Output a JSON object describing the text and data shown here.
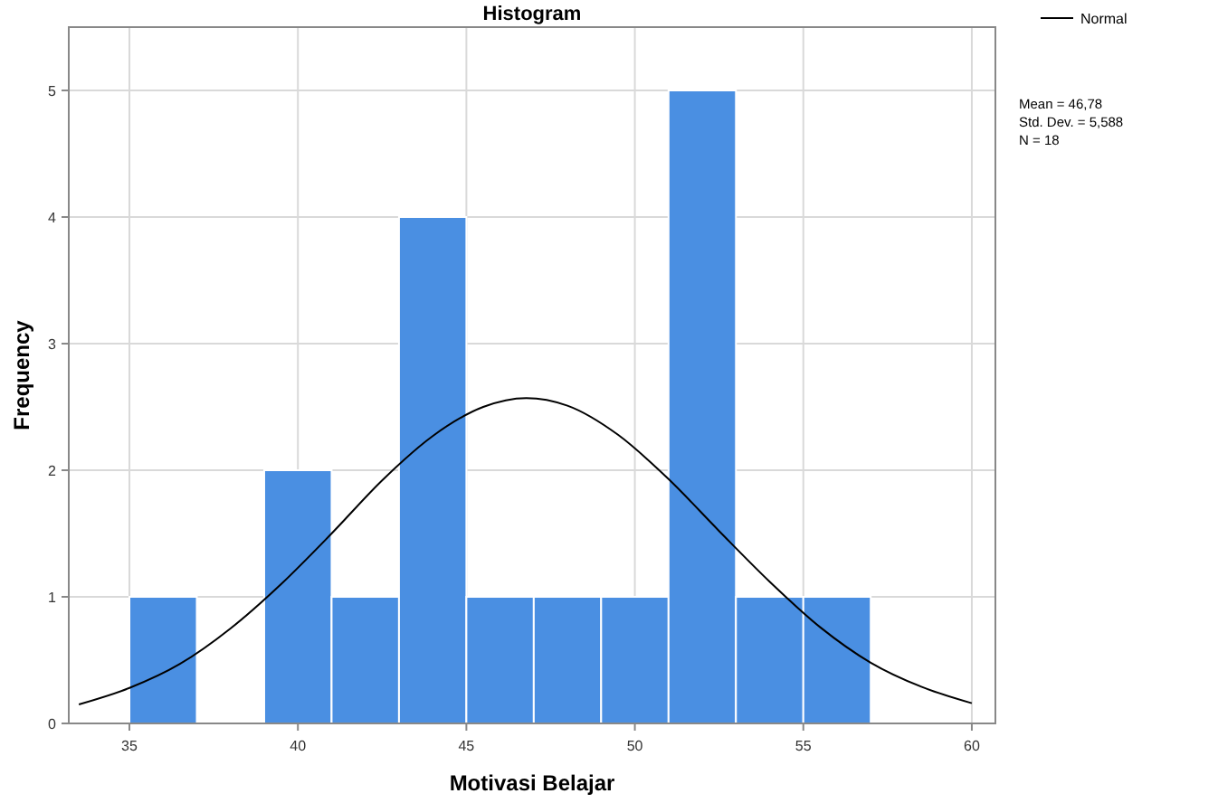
{
  "chart_data": {
    "type": "histogram",
    "title": "Histogram",
    "xlabel": "Motivasi Belajar",
    "ylabel": "Frequency",
    "bins": [
      35,
      37,
      39,
      41,
      43,
      45,
      47,
      49,
      51,
      53,
      55,
      57
    ],
    "series": [
      {
        "color": "#4a8fe2",
        "values": [
          1,
          0,
          2,
          1,
          4,
          1,
          1,
          1,
          5,
          1,
          1
        ]
      },
      {
        "type": "line",
        "name": "Normal",
        "color": "#000000",
        "x": [
          33.5,
          35,
          36.5,
          38,
          39.5,
          41,
          42.5,
          44,
          45.5,
          46.78,
          48,
          49.5,
          51,
          52.5,
          54,
          55.5,
          57,
          58.5,
          60
        ],
        "values": [
          0.15,
          0.28,
          0.47,
          0.75,
          1.1,
          1.5,
          1.92,
          2.27,
          2.5,
          2.57,
          2.51,
          2.28,
          1.93,
          1.52,
          1.12,
          0.76,
          0.48,
          0.29,
          0.16
        ]
      }
    ],
    "xlim": [
      33.2,
      60.7
    ],
    "ylim": [
      0,
      5.5
    ],
    "xticks": [
      35,
      40,
      45,
      50,
      55,
      60
    ],
    "yticks": [
      0,
      1,
      2,
      3,
      4,
      5
    ],
    "grid": true,
    "legend": "top right",
    "marker": "none",
    "line_style": "solid",
    "annotations": [
      "Mean = 46,78",
      "Std. Dev. = 5,588",
      "N = 18"
    ]
  }
}
